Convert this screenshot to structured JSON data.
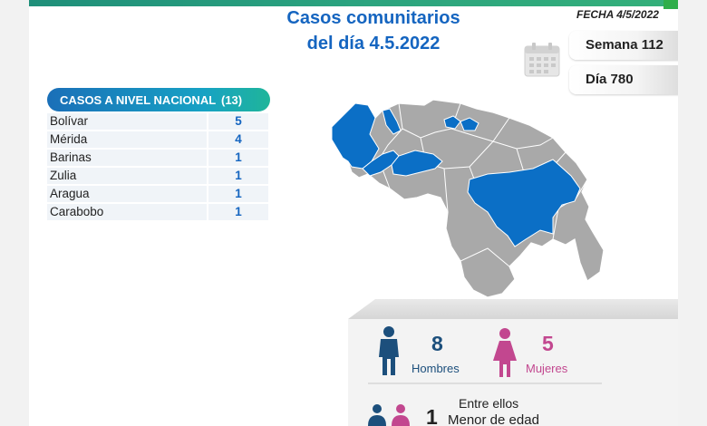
{
  "header": {
    "title_line1": "Casos comunitarios",
    "title_line2": "del día 4.5.2022",
    "fecha": "FECHA 4/5/2022",
    "semana": "Semana 112",
    "dia": "Día 780"
  },
  "nacional": {
    "label": "CASOS A NIVEL NACIONAL",
    "total": "(13)",
    "rows": [
      {
        "estado": "Bolívar",
        "casos": "5"
      },
      {
        "estado": "Mérida",
        "casos": "4"
      },
      {
        "estado": "Barinas",
        "casos": "1"
      },
      {
        "estado": "Zulia",
        "casos": "1"
      },
      {
        "estado": "Aragua",
        "casos": "1"
      },
      {
        "estado": "Carabobo",
        "casos": "1"
      }
    ]
  },
  "stats": {
    "hombres_count": "8",
    "hombres_label": "Hombres",
    "mujeres_count": "5",
    "mujeres_label": "Mujeres",
    "entre_ellos": "Entre ellos",
    "menor_count": "1",
    "menor_label": "Menor de edad"
  },
  "colors": {
    "title_blue": "#1565c0",
    "highlight_state": "#0b6fc6",
    "other_state": "#a9a9a9",
    "male_icon": "#1c4f7c",
    "female_icon": "#c2478f"
  },
  "icons": [
    "calendar-icon",
    "male-icon",
    "female-icon",
    "minor-icon"
  ]
}
